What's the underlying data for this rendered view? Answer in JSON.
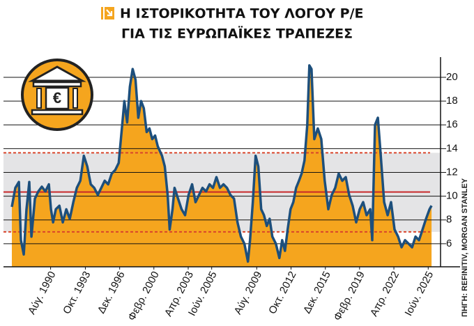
{
  "chart_data": {
    "type": "area",
    "title": [
      "Η ΙΣΤΟΡΙΚΟΤΗΤΑ ΤΟΥ ΛΟΓΟΥ P/E",
      "ΓΙΑ ΤΙΣ ΕΥΡΩΠΑΪΚΕΣ ΤΡΑΠΕΖΕΣ"
    ],
    "source": "ΠΗΓΗ: REFINITIV, MORGAN STANLEY",
    "icon_label": "€",
    "x": [
      1987.0,
      1987.32,
      1987.65,
      1987.84,
      1988.1,
      1988.35,
      1988.61,
      1988.81,
      1989.13,
      1989.45,
      1989.77,
      1990.1,
      1990.42,
      1990.61,
      1990.81,
      1991.06,
      1991.39,
      1991.71,
      1992.03,
      1992.35,
      1992.68,
      1993.0,
      1993.32,
      1993.65,
      1993.97,
      1994.29,
      1994.61,
      1994.94,
      1995.26,
      1995.58,
      1995.9,
      1996.23,
      1996.55,
      1996.87,
      1997.19,
      1997.39,
      1997.65,
      1997.9,
      1998.16,
      1998.42,
      1998.68,
      1998.94,
      1999.19,
      1999.45,
      1999.71,
      1999.97,
      2000.23,
      2000.48,
      2000.87,
      2001.13,
      2001.39,
      2001.58,
      2001.84,
      2002.03,
      2002.35,
      2002.68,
      2003.0,
      2003.32,
      2003.65,
      2003.97,
      2004.29,
      2004.61,
      2004.94,
      2005.26,
      2005.58,
      2005.9,
      2006.23,
      2006.55,
      2006.87,
      2007.19,
      2007.52,
      2007.84,
      2008.16,
      2008.48,
      2008.81,
      2009.0,
      2009.26,
      2009.52,
      2009.77,
      2010.03,
      2010.29,
      2010.55,
      2010.81,
      2011.06,
      2011.39,
      2011.71,
      2011.97,
      2012.23,
      2012.48,
      2012.74,
      2013.0,
      2013.26,
      2013.52,
      2013.77,
      2014.03,
      2014.29,
      2014.48,
      2014.68,
      2014.94,
      2015.26,
      2015.58,
      2015.9,
      2016.23,
      2016.55,
      2016.87,
      2017.19,
      2017.52,
      2017.84,
      2018.16,
      2018.48,
      2018.81,
      2019.13,
      2019.45,
      2019.77,
      2020.1,
      2020.29,
      2020.55,
      2020.81,
      2021.06,
      2021.39,
      2021.71,
      2022.03,
      2022.35,
      2022.68,
      2023.0,
      2023.32,
      2023.65,
      2023.97,
      2024.29,
      2024.61,
      2024.94,
      2025.26,
      2025.58,
      2025.77
    ],
    "values": [
      9.1,
      10.7,
      11.2,
      6.3,
      5.1,
      8.9,
      11.2,
      6.6,
      9.8,
      10.4,
      10.8,
      10.4,
      11,
      8.9,
      7.8,
      8.9,
      9.2,
      7.8,
      8.9,
      8.1,
      9.5,
      10.7,
      11.3,
      13.4,
      12.5,
      11,
      10.7,
      10.1,
      10.7,
      11.3,
      11,
      11.9,
      12.2,
      12.8,
      16,
      18,
      16.2,
      19.2,
      20.7,
      19.8,
      16.6,
      18,
      17.4,
      15.4,
      15.7,
      14.8,
      15.1,
      14.2,
      13.4,
      12.5,
      10.1,
      7.2,
      8.9,
      10.7,
      9.8,
      8.9,
      8.4,
      10.1,
      11,
      9.5,
      10.1,
      10.7,
      10.4,
      11,
      10.7,
      11.6,
      10.7,
      11,
      10.7,
      10.1,
      9.8,
      7.8,
      6.6,
      6,
      4.5,
      6.3,
      9.5,
      13.4,
      12.5,
      8.9,
      8.4,
      7.5,
      8.1,
      6.6,
      6,
      4.8,
      6.3,
      5.4,
      7.2,
      8.9,
      9.5,
      10.7,
      11.3,
      11.9,
      13,
      16,
      21,
      20.7,
      14.8,
      15.7,
      14.8,
      11.3,
      8.9,
      10.1,
      10.7,
      11.9,
      11.3,
      11.6,
      10.1,
      9.2,
      7.8,
      8.9,
      9.5,
      8.4,
      8.9,
      6.3,
      16,
      16.6,
      13.6,
      9.5,
      8.4,
      9.5,
      7.2,
      6.6,
      5.7,
      6.3,
      6,
      5.7,
      6.6,
      6.3,
      7.2,
      8.1,
      8.9,
      9.2
    ],
    "line_color": "#1d4f7c",
    "fill_color": "#f5a51e",
    "xlim": [
      1987,
      2026.6
    ],
    "xticks": [
      {
        "value": 1990.58,
        "label": "Αύγ. 1990"
      },
      {
        "value": 1993.79,
        "label": "Οκτ. 1993"
      },
      {
        "value": 1996.96,
        "label": "Δεκ. 1996"
      },
      {
        "value": 2000.12,
        "label": "Φεβρ. 2000"
      },
      {
        "value": 2003.29,
        "label": "Απρ. 2003"
      },
      {
        "value": 2005.46,
        "label": "Ιούν. 2005"
      },
      {
        "value": 2009.62,
        "label": "Αύγ. 2009"
      },
      {
        "value": 2012.79,
        "label": "Οκτ. 2012"
      },
      {
        "value": 2015.96,
        "label": "Δεκ. 2015"
      },
      {
        "value": 2019.12,
        "label": "Φεβρ. 2019"
      },
      {
        "value": 2022.29,
        "label": "Απρ. 2022"
      },
      {
        "value": 2025.46,
        "label": "Ιούν. 2025"
      }
    ],
    "ylim": [
      4.06,
      21.7
    ],
    "yticks": [
      6,
      8,
      10,
      12,
      14,
      16,
      18,
      20
    ],
    "grid": true,
    "reference_lines": [
      {
        "value": 13.65,
        "color": "#d9442b",
        "dashed": true
      },
      {
        "value": 10.35,
        "color": "#c8282a",
        "dashed": false
      },
      {
        "value": 7.0,
        "color": "#d9442b",
        "dashed": true
      }
    ],
    "band_color": "#e4e4e6"
  }
}
